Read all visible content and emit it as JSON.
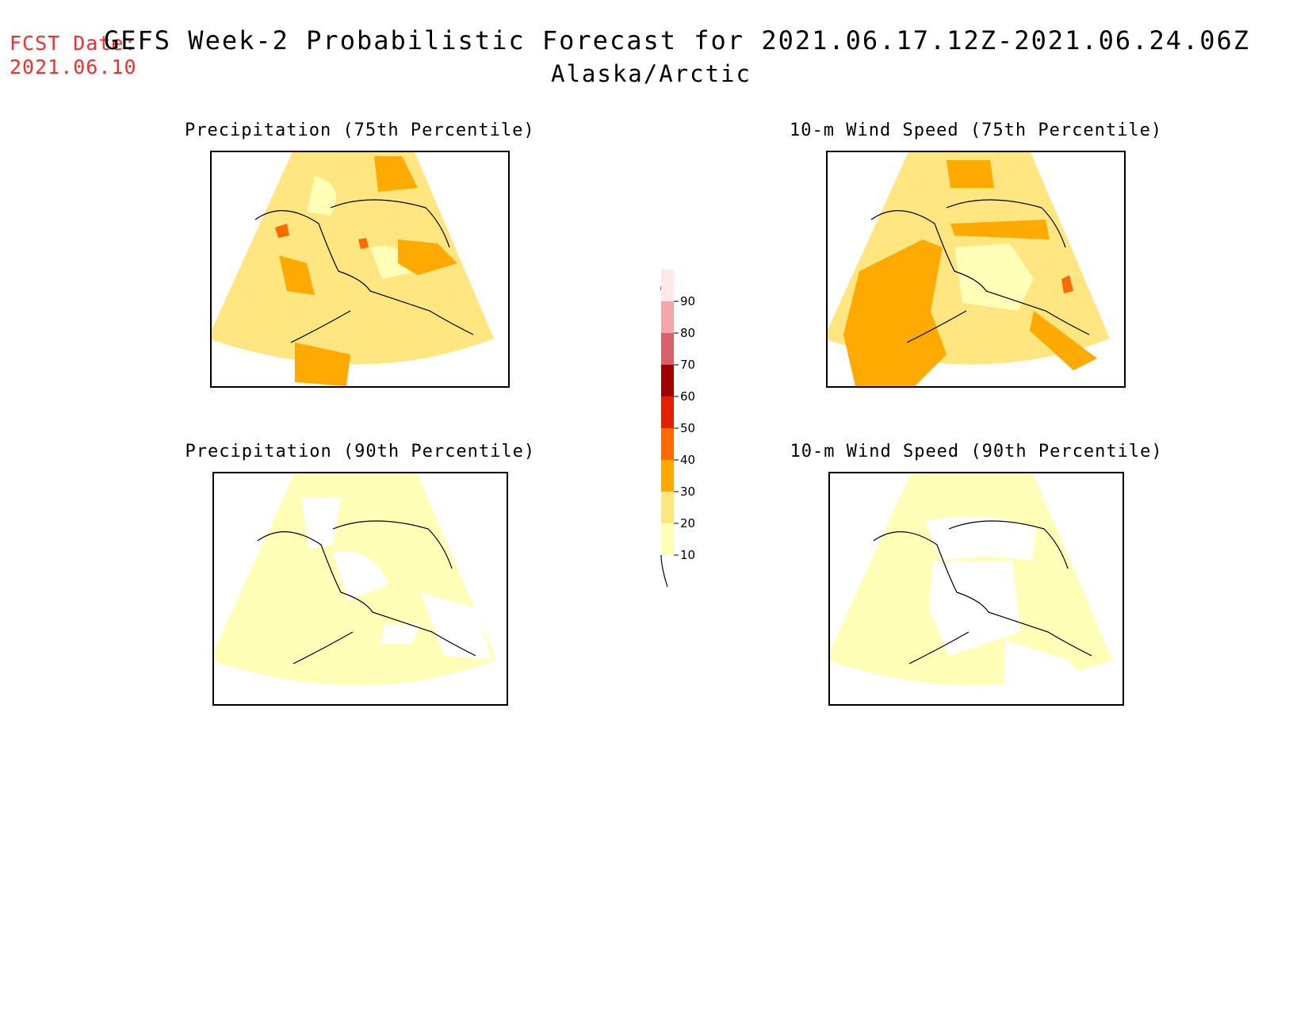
{
  "header": {
    "fcst_label": "FCST Date:",
    "fcst_date": "2021.06.10",
    "title": "GEFS Week-2 Probabilistic Forecast for 2021.06.17.12Z-2021.06.24.06Z",
    "region": "Alaska/Arctic"
  },
  "panels": [
    {
      "title": "Precipitation (75th Percentile)",
      "dominant_level": "20-30",
      "highlight_level": "30-40"
    },
    {
      "title": "10-m Wind Speed (75th Percentile)",
      "dominant_level": "20-30",
      "highlight_level": "30-40"
    },
    {
      "title": "Precipitation (90th Percentile)",
      "dominant_level": "10-20",
      "highlight_level": "below 10"
    },
    {
      "title": "10-m Wind Speed (90th Percentile)",
      "dominant_level": "10-20",
      "highlight_level": "below 10"
    }
  ],
  "colorbar": {
    "levels": [
      "10",
      "20",
      "30",
      "40",
      "50",
      "60",
      "70",
      "80",
      "90"
    ],
    "colors": [
      "#ffffb8",
      "#ffe680",
      "#ffaa00",
      "#ff6a00",
      "#e02000",
      "#a00000",
      "#d8606a",
      "#f2a6ac",
      "#ffe8ea"
    ]
  }
}
